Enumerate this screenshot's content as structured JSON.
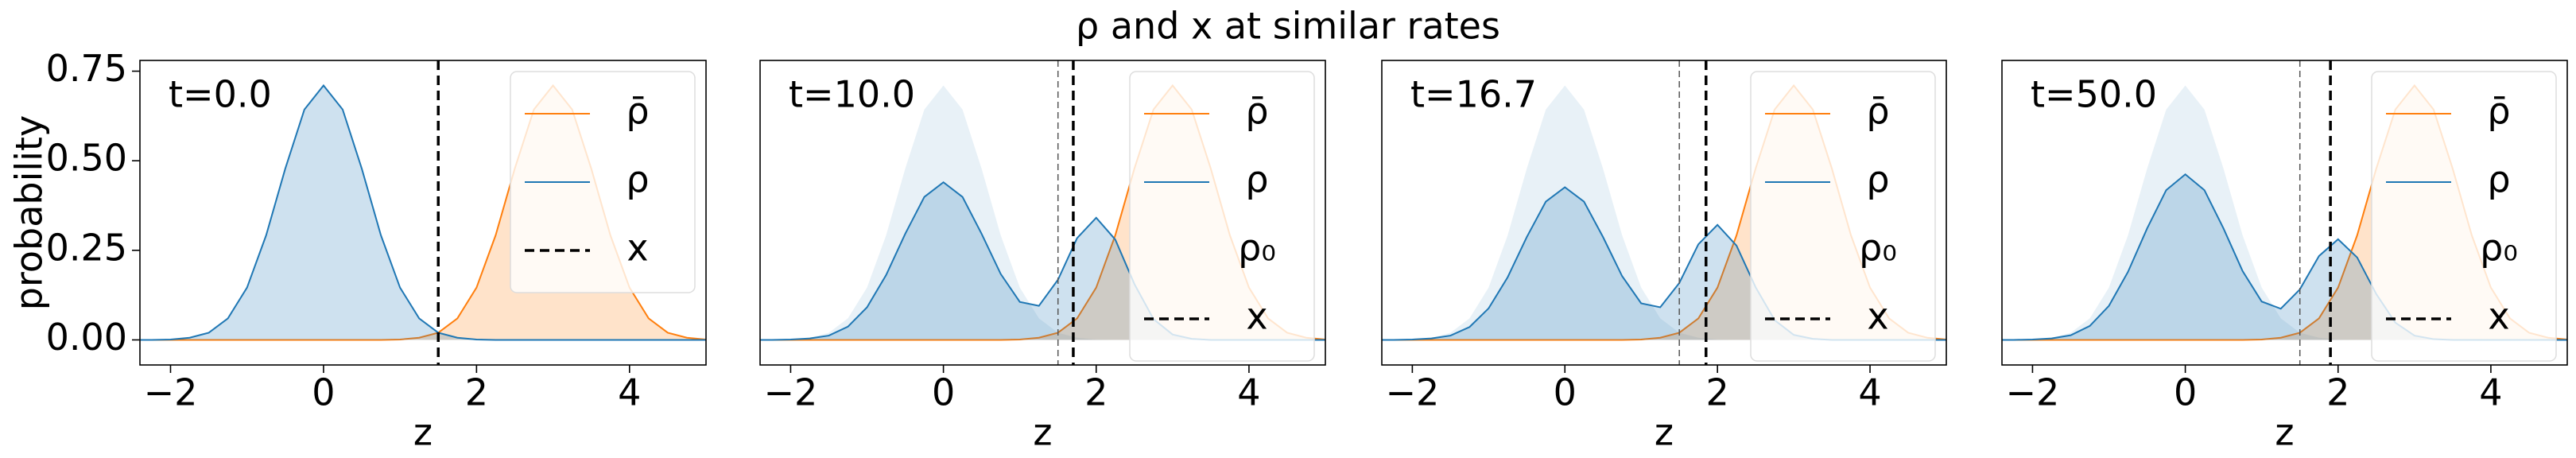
{
  "title": "ρ and x at similar rates",
  "chart_data": [
    {
      "type": "line",
      "annotation": "t=0.0",
      "xlabel": "z",
      "ylabel": "probability",
      "legend": "upper right",
      "x": [
        -2.5,
        -2.25,
        -2,
        -1.75,
        -1.5,
        -1.25,
        -1,
        -0.75,
        -0.5,
        -0.25,
        0,
        0.25,
        0.5,
        0.75,
        1,
        1.25,
        1.5,
        1.75,
        2,
        2.25,
        2.5,
        2.75,
        3,
        3.25,
        3.5,
        3.75,
        4,
        4.25,
        4.5,
        4.75,
        5
      ],
      "series": [
        {
          "name": "ρ̄",
          "color": "#ff7f0e",
          "values": [
            0,
            0,
            0,
            0,
            0,
            0,
            0,
            0,
            0,
            0,
            0,
            0,
            0,
            0,
            0.001,
            0.006,
            0.02,
            0.06,
            0.146,
            0.292,
            0.478,
            0.643,
            0.71,
            0.643,
            0.478,
            0.292,
            0.146,
            0.06,
            0.02,
            0.006,
            0.001
          ]
        },
        {
          "name": "ρ",
          "color": "#1f77b4",
          "values": [
            0,
            0,
            0.001,
            0.006,
            0.02,
            0.06,
            0.146,
            0.292,
            0.478,
            0.643,
            0.71,
            0.643,
            0.478,
            0.292,
            0.146,
            0.06,
            0.02,
            0.006,
            0.001,
            0,
            0,
            0,
            0,
            0,
            0,
            0,
            0,
            0,
            0,
            0,
            0
          ]
        }
      ],
      "vline": {
        "name": "x",
        "value": 1.5,
        "color": "#000000"
      },
      "xlim": [
        -2.4,
        5
      ],
      "ylim": [
        -0.07,
        0.78
      ],
      "xticks": [
        {
          "value": -2,
          "label": "−2"
        },
        0,
        2,
        4
      ],
      "yticks": [
        {
          "value": 0,
          "label": "0.00"
        },
        {
          "value": 0.25,
          "label": "0.25"
        },
        {
          "value": 0.5,
          "label": "0.50"
        },
        {
          "value": 0.75,
          "label": "0.75"
        }
      ]
    },
    {
      "type": "line",
      "annotation": "t=10.0",
      "xlabel": "z",
      "legend": "upper right",
      "x": [
        -2.5,
        -2.25,
        -2,
        -1.75,
        -1.5,
        -1.25,
        -1,
        -0.75,
        -0.5,
        -0.25,
        0,
        0.25,
        0.5,
        0.75,
        1,
        1.25,
        1.5,
        1.75,
        2,
        2.25,
        2.5,
        2.75,
        3,
        3.25,
        3.5,
        3.75,
        4,
        4.25,
        4.5,
        4.75,
        5
      ],
      "series": [
        {
          "name": "ρ̄",
          "color": "#ff7f0e",
          "values": [
            0,
            0,
            0,
            0,
            0,
            0,
            0,
            0,
            0,
            0,
            0,
            0,
            0,
            0,
            0.001,
            0.006,
            0.02,
            0.06,
            0.146,
            0.292,
            0.478,
            0.643,
            0.71,
            0.643,
            0.478,
            0.292,
            0.146,
            0.06,
            0.02,
            0.006,
            0.001
          ]
        },
        {
          "name": "ρ",
          "color": "#1f77b4",
          "values": [
            0,
            0,
            0.001,
            0.004,
            0.012,
            0.037,
            0.091,
            0.181,
            0.296,
            0.399,
            0.44,
            0.399,
            0.296,
            0.184,
            0.106,
            0.095,
            0.168,
            0.284,
            0.341,
            0.28,
            0.156,
            0.058,
            0.015,
            0.003,
            0,
            0,
            0,
            0,
            0,
            0,
            0
          ]
        },
        {
          "name": "ρ₀",
          "color": "#1f77b4",
          "line": false,
          "values": [
            0,
            0,
            0.001,
            0.006,
            0.02,
            0.06,
            0.146,
            0.292,
            0.478,
            0.643,
            0.71,
            0.643,
            0.478,
            0.292,
            0.146,
            0.06,
            0.02,
            0.006,
            0.001,
            0,
            0,
            0,
            0,
            0,
            0,
            0,
            0,
            0,
            0,
            0,
            0
          ]
        }
      ],
      "vline": {
        "name": "x",
        "value": 1.7,
        "color": "#000000"
      },
      "ref_line": 1.5,
      "xlim": [
        -2.4,
        5
      ],
      "ylim": [
        -0.07,
        0.78
      ],
      "xticks": [
        {
          "value": -2,
          "label": "−2"
        },
        0,
        2,
        4
      ]
    },
    {
      "type": "line",
      "annotation": "t=16.7",
      "xlabel": "z",
      "legend": "upper right",
      "x": [
        -2.5,
        -2.25,
        -2,
        -1.75,
        -1.5,
        -1.25,
        -1,
        -0.75,
        -0.5,
        -0.25,
        0,
        0.25,
        0.5,
        0.75,
        1,
        1.25,
        1.5,
        1.75,
        2,
        2.25,
        2.5,
        2.75,
        3,
        3.25,
        3.5,
        3.75,
        4,
        4.25,
        4.5,
        4.75,
        5
      ],
      "series": [
        {
          "name": "ρ̄",
          "color": "#ff7f0e",
          "values": [
            0,
            0,
            0,
            0,
            0,
            0,
            0,
            0,
            0,
            0,
            0,
            0,
            0,
            0,
            0.001,
            0.006,
            0.02,
            0.06,
            0.146,
            0.292,
            0.478,
            0.643,
            0.71,
            0.643,
            0.478,
            0.292,
            0.146,
            0.06,
            0.02,
            0.006,
            0.001
          ]
        },
        {
          "name": "ρ",
          "color": "#1f77b4",
          "values": [
            0,
            0,
            0.001,
            0.004,
            0.012,
            0.036,
            0.088,
            0.175,
            0.287,
            0.386,
            0.426,
            0.386,
            0.287,
            0.178,
            0.102,
            0.091,
            0.159,
            0.267,
            0.321,
            0.263,
            0.147,
            0.055,
            0.014,
            0.003,
            0,
            0,
            0,
            0,
            0,
            0,
            0
          ]
        },
        {
          "name": "ρ₀",
          "color": "#1f77b4",
          "line": false,
          "values": [
            0,
            0,
            0.001,
            0.006,
            0.02,
            0.06,
            0.146,
            0.292,
            0.478,
            0.643,
            0.71,
            0.643,
            0.478,
            0.292,
            0.146,
            0.06,
            0.02,
            0.006,
            0.001,
            0,
            0,
            0,
            0,
            0,
            0,
            0,
            0,
            0,
            0,
            0,
            0
          ]
        }
      ],
      "vline": {
        "name": "x",
        "value": 1.85,
        "color": "#000000"
      },
      "ref_line": 1.5,
      "xlim": [
        -2.4,
        5
      ],
      "ylim": [
        -0.07,
        0.78
      ],
      "xticks": [
        {
          "value": -2,
          "label": "−2"
        },
        0,
        2,
        4
      ]
    },
    {
      "type": "line",
      "annotation": "t=50.0",
      "xlabel": "z",
      "legend": "upper right",
      "x": [
        -2.5,
        -2.25,
        -2,
        -1.75,
        -1.5,
        -1.25,
        -1,
        -0.75,
        -0.5,
        -0.25,
        0,
        0.25,
        0.5,
        0.75,
        1,
        1.25,
        1.5,
        1.75,
        2,
        2.25,
        2.5,
        2.75,
        3,
        3.25,
        3.5,
        3.75,
        4,
        4.25,
        4.5,
        4.75,
        5
      ],
      "series": [
        {
          "name": "ρ̄",
          "color": "#ff7f0e",
          "values": [
            0,
            0,
            0,
            0,
            0,
            0,
            0,
            0,
            0,
            0,
            0,
            0,
            0,
            0,
            0.001,
            0.006,
            0.02,
            0.06,
            0.146,
            0.292,
            0.478,
            0.643,
            0.71,
            0.643,
            0.478,
            0.292,
            0.146,
            0.06,
            0.02,
            0.006,
            0.001
          ]
        },
        {
          "name": "ρ",
          "color": "#1f77b4",
          "values": [
            0,
            0,
            0.001,
            0.004,
            0.013,
            0.039,
            0.095,
            0.19,
            0.311,
            0.418,
            0.462,
            0.418,
            0.311,
            0.192,
            0.107,
            0.087,
            0.141,
            0.234,
            0.281,
            0.23,
            0.128,
            0.048,
            0.012,
            0.002,
            0,
            0,
            0,
            0,
            0,
            0,
            0
          ]
        },
        {
          "name": "ρ₀",
          "color": "#1f77b4",
          "line": false,
          "values": [
            0,
            0,
            0.001,
            0.006,
            0.02,
            0.06,
            0.146,
            0.292,
            0.478,
            0.643,
            0.71,
            0.643,
            0.478,
            0.292,
            0.146,
            0.06,
            0.02,
            0.006,
            0.001,
            0,
            0,
            0,
            0,
            0,
            0,
            0,
            0,
            0,
            0,
            0,
            0
          ]
        }
      ],
      "vline": {
        "name": "x",
        "value": 1.9,
        "color": "#000000"
      },
      "ref_line": 1.5,
      "xlim": [
        -2.4,
        5
      ],
      "ylim": [
        -0.07,
        0.78
      ],
      "xticks": [
        {
          "value": -2,
          "label": "−2"
        },
        0,
        2,
        4
      ]
    }
  ]
}
